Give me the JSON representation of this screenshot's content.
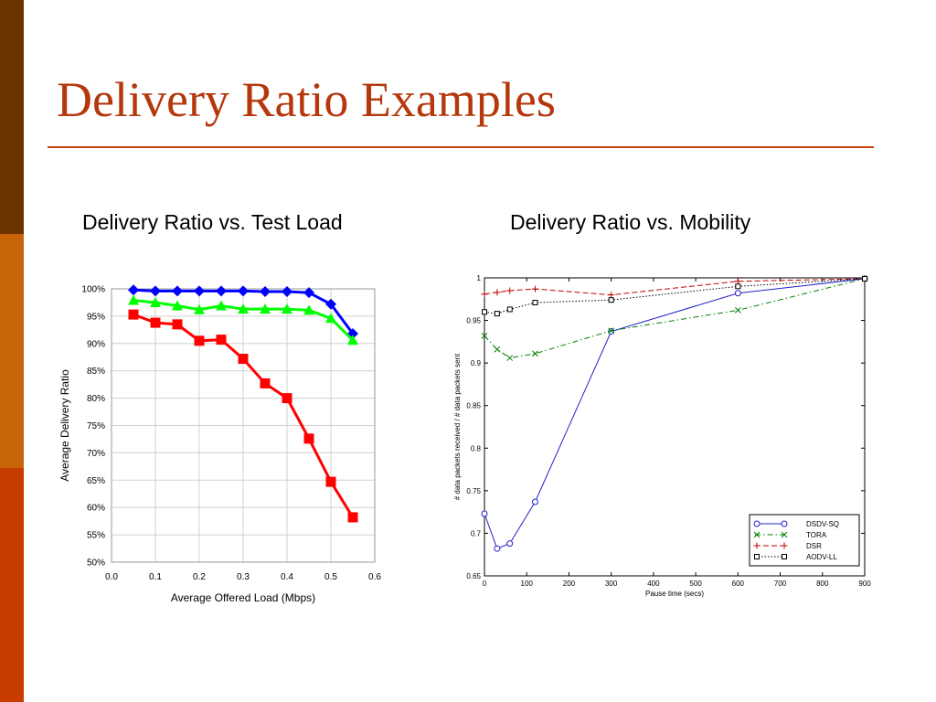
{
  "slide": {
    "title": "Delivery Ratio Examples",
    "colors": {
      "title": "#b5380c",
      "rule": "#c3440c",
      "sidebar": [
        "#6b3300",
        "#c8650a",
        "#c83c00"
      ]
    }
  },
  "charts": {
    "left_heading": "Delivery Ratio vs. Test Load",
    "right_heading": "Delivery Ratio vs. Mobility"
  },
  "chart_data": [
    {
      "type": "line",
      "xlabel": "Average Offered Load (Mbps)",
      "ylabel": "Average Delivery Ratio",
      "xlim": [
        0,
        0.6
      ],
      "ylim": [
        50,
        100
      ],
      "x_ticks": [
        "0.0",
        "0.1",
        "0.2",
        "0.3",
        "0.4",
        "0.5",
        "0.6"
      ],
      "y_ticks": [
        "50%",
        "55%",
        "60%",
        "65%",
        "70%",
        "75%",
        "80%",
        "85%",
        "90%",
        "95%",
        "100%"
      ],
      "grid": true,
      "x": [
        0.05,
        0.1,
        0.15,
        0.2,
        0.25,
        0.3,
        0.35,
        0.4,
        0.45,
        0.5,
        0.55
      ],
      "series": [
        {
          "color": "#0000ff",
          "marker": "diamond",
          "values": [
            99.8,
            99.6,
            99.6,
            99.6,
            99.6,
            99.6,
            99.5,
            99.5,
            99.3,
            97.2,
            91.8
          ]
        },
        {
          "color": "#00ff00",
          "marker": "triangle",
          "values": [
            97.9,
            97.5,
            96.9,
            96.2,
            96.9,
            96.3,
            96.3,
            96.3,
            96.1,
            94.6,
            90.6
          ]
        },
        {
          "color": "#ff0000",
          "marker": "square",
          "values": [
            95.3,
            93.8,
            93.5,
            90.5,
            90.7,
            87.2,
            82.7,
            80.0,
            72.6,
            64.7,
            58.2
          ]
        }
      ]
    },
    {
      "type": "line",
      "xlabel": "Pause time (secs)",
      "ylabel": "# data packets received / # data packets sent",
      "xlim": [
        0,
        900
      ],
      "ylim": [
        0.65,
        1
      ],
      "x_ticks": [
        "0",
        "100",
        "200",
        "300",
        "400",
        "500",
        "600",
        "700",
        "800",
        "900"
      ],
      "y_ticks": [
        "0.65",
        "0.7",
        "0.75",
        "0.8",
        "0.85",
        "0.9",
        "0.95",
        "1"
      ],
      "legend_position": "bottom-right",
      "series": [
        {
          "name": "DSDV-SQ",
          "color": "#2020c8",
          "marker": "circle",
          "dash": "solid",
          "x": [
            0,
            30,
            60,
            120,
            300,
            600,
            900
          ],
          "values": [
            0.723,
            0.682,
            0.688,
            0.737,
            0.937,
            0.982,
            0.999
          ]
        },
        {
          "name": "TORA",
          "color": "#008000",
          "marker": "x",
          "dash": "dashdot",
          "x": [
            0,
            30,
            60,
            120,
            300,
            600,
            900
          ],
          "values": [
            0.932,
            0.916,
            0.906,
            0.911,
            0.938,
            0.962,
            0.999
          ]
        },
        {
          "name": "DSR",
          "color": "#c00000",
          "marker": "plus",
          "dash": "dashed",
          "x": [
            0,
            30,
            60,
            120,
            300,
            600,
            900
          ],
          "values": [
            0.981,
            0.983,
            0.985,
            0.987,
            0.98,
            0.996,
            0.999
          ]
        },
        {
          "name": "AODV-LL",
          "color": "#000000",
          "marker": "square",
          "dash": "dotted",
          "x": [
            0,
            30,
            60,
            120,
            300,
            600,
            900
          ],
          "values": [
            0.96,
            0.958,
            0.963,
            0.971,
            0.974,
            0.99,
            0.999
          ]
        }
      ]
    }
  ]
}
